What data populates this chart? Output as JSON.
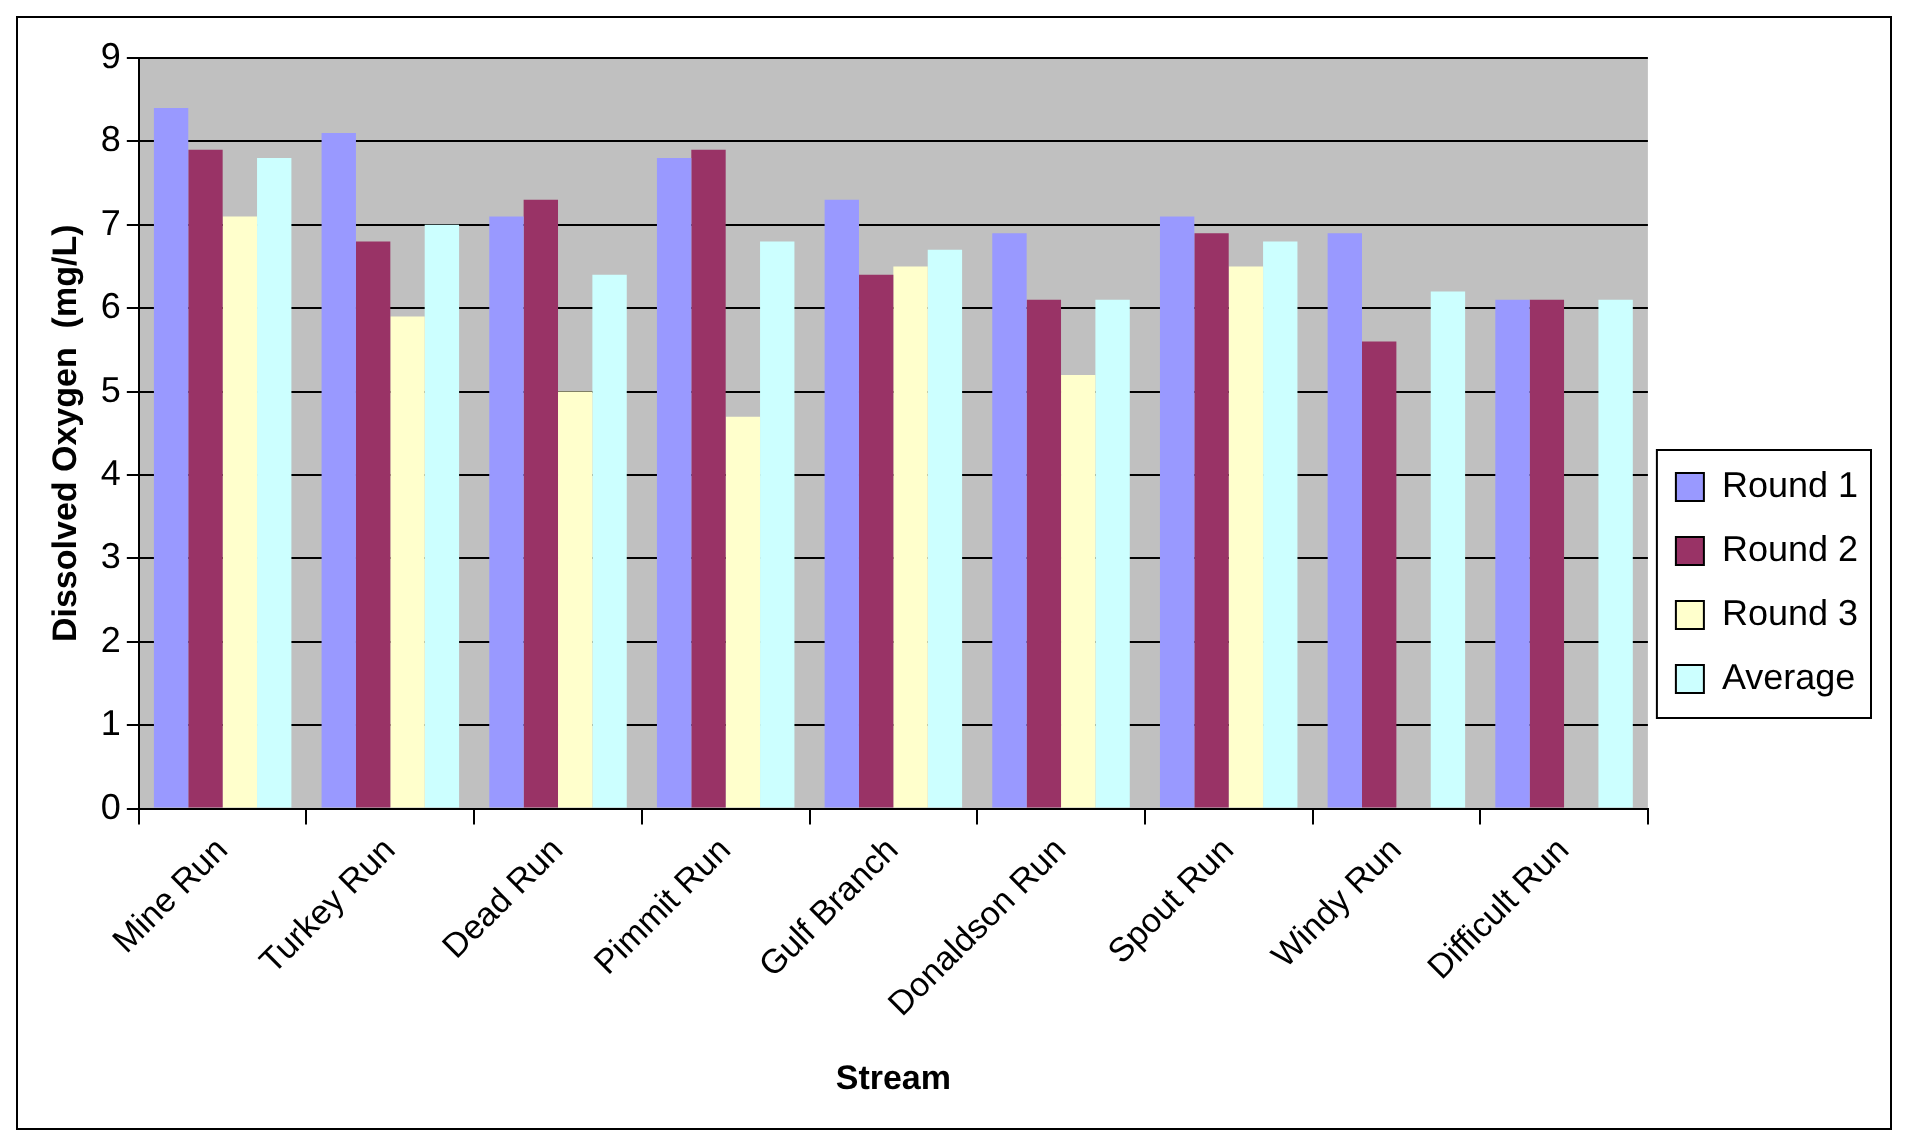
{
  "chart_data": {
    "type": "bar",
    "xlabel": "Stream",
    "ylabel": "Dissolved Oxygen  (mg/L)",
    "categories": [
      "Mine Run",
      "Turkey Run",
      "Dead Run",
      "Pimmit Run",
      "Gulf Branch",
      "Donaldson Run",
      "Spout Run",
      "Windy Run",
      "Difficult Run"
    ],
    "series": [
      {
        "name": "Round 1",
        "color": "#9999ff",
        "values": [
          8.4,
          8.1,
          7.1,
          7.8,
          7.3,
          6.9,
          7.1,
          6.9,
          6.1
        ]
      },
      {
        "name": "Round 2",
        "color": "#993366",
        "values": [
          7.9,
          6.8,
          7.3,
          7.9,
          6.4,
          6.1,
          6.9,
          5.6,
          6.1
        ]
      },
      {
        "name": "Round 3",
        "color": "#ffffcc",
        "values": [
          7.1,
          5.9,
          5.0,
          4.7,
          6.5,
          5.2,
          6.5,
          null,
          null
        ]
      },
      {
        "name": "Average",
        "color": "#ccffff",
        "values": [
          7.8,
          7.0,
          6.4,
          6.8,
          6.7,
          6.1,
          6.8,
          6.2,
          6.1
        ]
      }
    ],
    "ylim": [
      0,
      9
    ],
    "yticks": [
      0,
      1,
      2,
      3,
      4,
      5,
      6,
      7,
      8,
      9
    ],
    "grid": "y",
    "legend": "right"
  }
}
